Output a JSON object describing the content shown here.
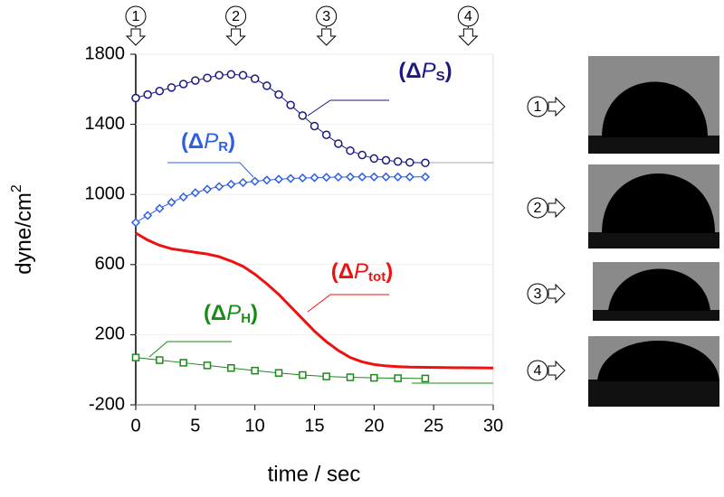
{
  "chart_data": {
    "type": "scatter",
    "xlabel": "time / sec",
    "ylabel": [
      "dyne/cm",
      "2"
    ],
    "xlim": [
      0,
      30
    ],
    "xticks": [
      0,
      5,
      10,
      15,
      20,
      25,
      30
    ],
    "ylim": [
      -200,
      1800
    ],
    "yticks": [
      -200,
      200,
      600,
      1000,
      1400,
      1800
    ],
    "time_marks": [
      {
        "label": "1",
        "x": 0
      },
      {
        "label": "2",
        "x": 8.4
      },
      {
        "label": "3",
        "x": 16
      },
      {
        "label": "4",
        "x": 27.9
      }
    ],
    "photo_labels": [
      "1",
      "2",
      "3",
      "4"
    ],
    "series": [
      {
        "label": [
          "(Δ",
          "P",
          "S",
          ")"
        ],
        "color": "#1a1a80",
        "marker": "circle",
        "x": [
          0,
          1,
          2,
          3,
          4,
          5,
          6,
          7,
          8,
          9,
          10,
          11,
          12,
          13,
          14,
          15,
          16,
          17,
          18,
          19,
          20,
          21,
          22,
          23,
          24.3
        ],
        "values": [
          1550,
          1570,
          1590,
          1610,
          1630,
          1650,
          1665,
          1680,
          1685,
          1680,
          1660,
          1620,
          1570,
          1510,
          1450,
          1390,
          1340,
          1290,
          1250,
          1225,
          1205,
          1195,
          1188,
          1183,
          1180
        ]
      },
      {
        "label": [
          "(Δ",
          "P",
          "R",
          ")"
        ],
        "color": "#2e5fe0",
        "marker": "diamond",
        "x": [
          0,
          1,
          2,
          3,
          4,
          5,
          6,
          7,
          8,
          9,
          10,
          11,
          12,
          13,
          14,
          15,
          16,
          17,
          18,
          19,
          20,
          21,
          22,
          23,
          24.3
        ],
        "values": [
          840,
          880,
          920,
          955,
          985,
          1010,
          1030,
          1045,
          1058,
          1068,
          1075,
          1082,
          1087,
          1091,
          1094,
          1096,
          1098,
          1099,
          1100,
          1100,
          1100,
          1100,
          1100,
          1100,
          1100
        ]
      },
      {
        "label": [
          "(Δ",
          "P",
          "tot",
          ")"
        ],
        "color": "#ee1111",
        "marker": "line",
        "x": [
          0,
          1,
          2,
          3,
          4,
          5,
          6,
          7,
          8,
          9,
          10,
          11,
          12,
          13,
          14,
          15,
          16,
          17,
          18,
          19,
          20,
          21,
          22,
          23,
          25,
          30
        ],
        "values": [
          780,
          740,
          710,
          690,
          680,
          670,
          660,
          645,
          620,
          590,
          545,
          490,
          430,
          360,
          290,
          220,
          160,
          110,
          70,
          45,
          30,
          22,
          18,
          15,
          13,
          10
        ]
      },
      {
        "label": [
          "(Δ",
          "P",
          "H",
          ")"
        ],
        "color": "#1a8a1a",
        "marker": "square",
        "x": [
          0,
          2,
          4,
          6,
          8,
          10,
          12,
          14,
          16,
          18,
          20,
          22,
          24.3
        ],
        "values": [
          70,
          55,
          40,
          25,
          10,
          -5,
          -18,
          -30,
          -38,
          -43,
          -46,
          -48,
          -50
        ]
      }
    ]
  }
}
